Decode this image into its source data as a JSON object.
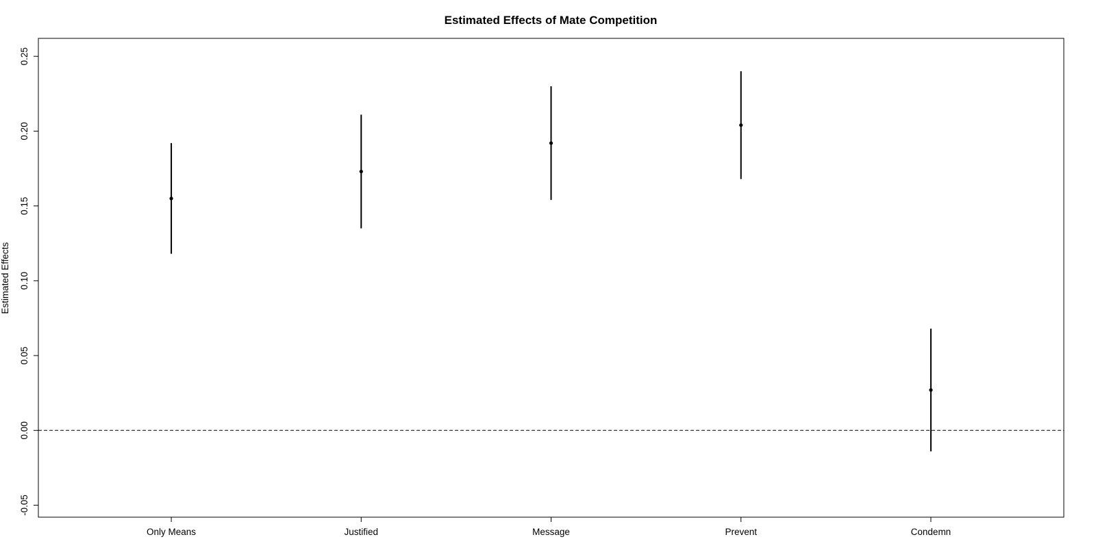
{
  "chart_data": {
    "type": "errorbar",
    "title": "Estimated Effects of Mate Competition",
    "xlabel": "",
    "ylabel": "Estimated Effects",
    "categories": [
      "Only Means",
      "Justified",
      "Message",
      "Prevent",
      "Condemn"
    ],
    "estimates": [
      0.155,
      0.173,
      0.192,
      0.204,
      0.027
    ],
    "lower": [
      0.118,
      0.135,
      0.154,
      0.168,
      -0.014
    ],
    "upper": [
      0.192,
      0.211,
      0.23,
      0.24,
      0.068
    ],
    "ylim": [
      -0.058,
      0.262
    ],
    "yticks": [
      -0.05,
      0.0,
      0.05,
      0.1,
      0.15,
      0.2,
      0.25
    ],
    "ytick_labels": [
      "-0.05",
      "0.00",
      "0.05",
      "0.10",
      "0.15",
      "0.20",
      "0.25"
    ],
    "reference_line": {
      "y": 0,
      "style": "dashed"
    },
    "grid": false,
    "legend": "none",
    "colors": {
      "marks": "#000000",
      "background": "#ffffff"
    }
  }
}
